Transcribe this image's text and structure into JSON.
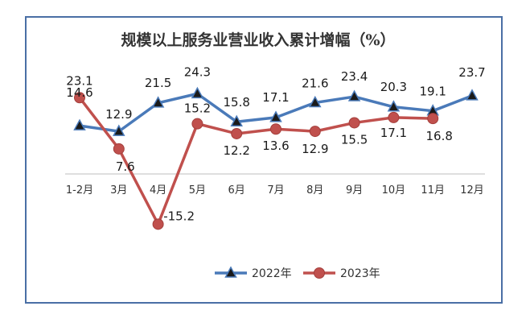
{
  "chart_data": {
    "type": "line",
    "title": "规模以上服务业营业收入累计增幅（%）",
    "categories": [
      "1-2月",
      "3月",
      "4月",
      "5月",
      "6月",
      "7月",
      "8月",
      "9月",
      "10月",
      "11月",
      "12月"
    ],
    "series": [
      {
        "name": "2022年",
        "color": "#4a7ab9",
        "marker": "triangle",
        "values": [
          14.6,
          12.9,
          21.5,
          24.3,
          15.8,
          17.1,
          21.6,
          23.4,
          20.3,
          19.1,
          23.7
        ]
      },
      {
        "name": "2023年",
        "color": "#c0504d",
        "marker": "circle",
        "values": [
          23.1,
          7.6,
          -15.2,
          15.2,
          12.2,
          13.6,
          12.9,
          15.5,
          17.1,
          16.8,
          null
        ]
      }
    ],
    "ylim": [
      -20,
      30
    ],
    "grid": false,
    "legend": "bottom",
    "axis_color": "#bfbfbf"
  }
}
